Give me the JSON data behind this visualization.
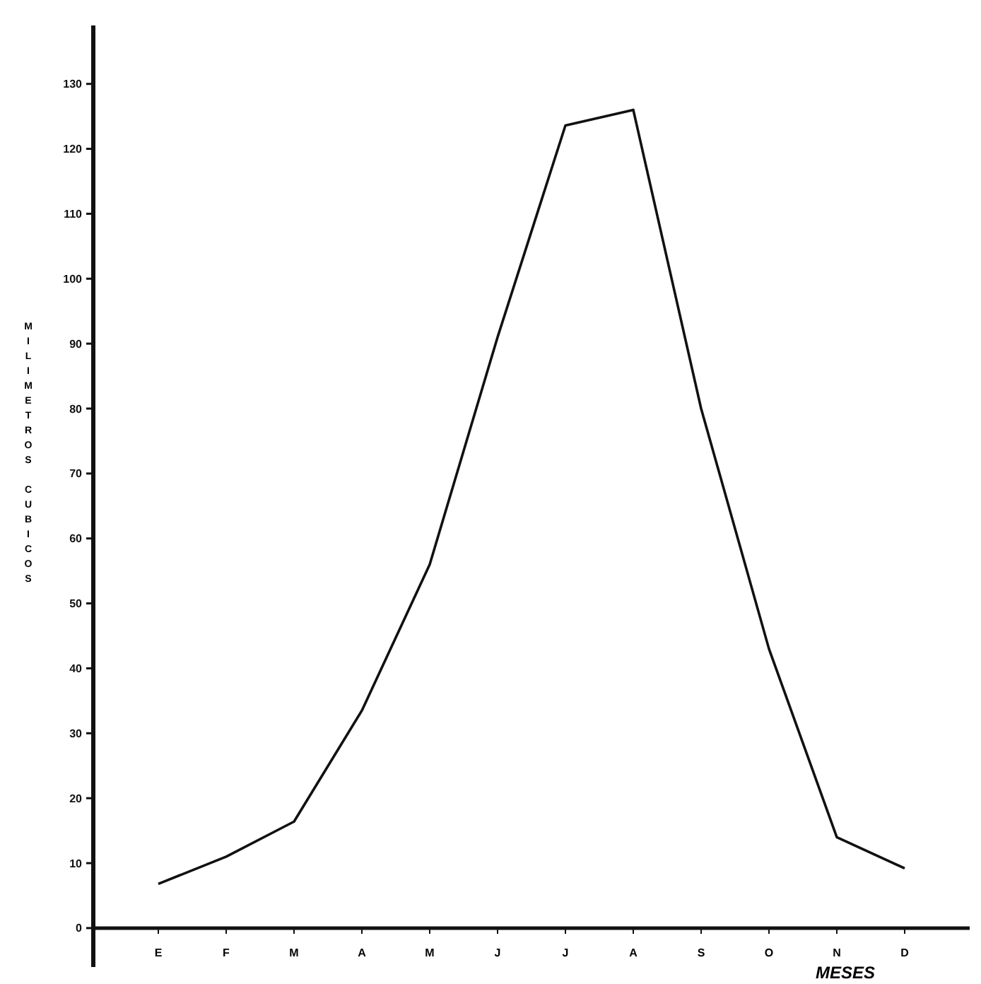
{
  "chart_data": {
    "type": "line",
    "xlabel": "MESES",
    "ylabel": "MILIMETROS CUBICOS",
    "categories": [
      "E",
      "F",
      "M",
      "A",
      "M",
      "J",
      "J",
      "A",
      "S",
      "O",
      "N",
      "D"
    ],
    "series": [
      {
        "color": "#111111",
        "values": [
          6.8,
          11,
          16.4,
          33.5,
          56,
          91,
          123.6,
          126,
          80,
          43,
          14,
          9.2
        ]
      }
    ],
    "ylim": [
      -6,
      139
    ],
    "yticks": [
      0,
      10,
      20,
      30,
      40,
      50,
      60,
      70,
      80,
      90,
      100,
      110,
      120,
      130
    ],
    "line_style": "solid"
  }
}
